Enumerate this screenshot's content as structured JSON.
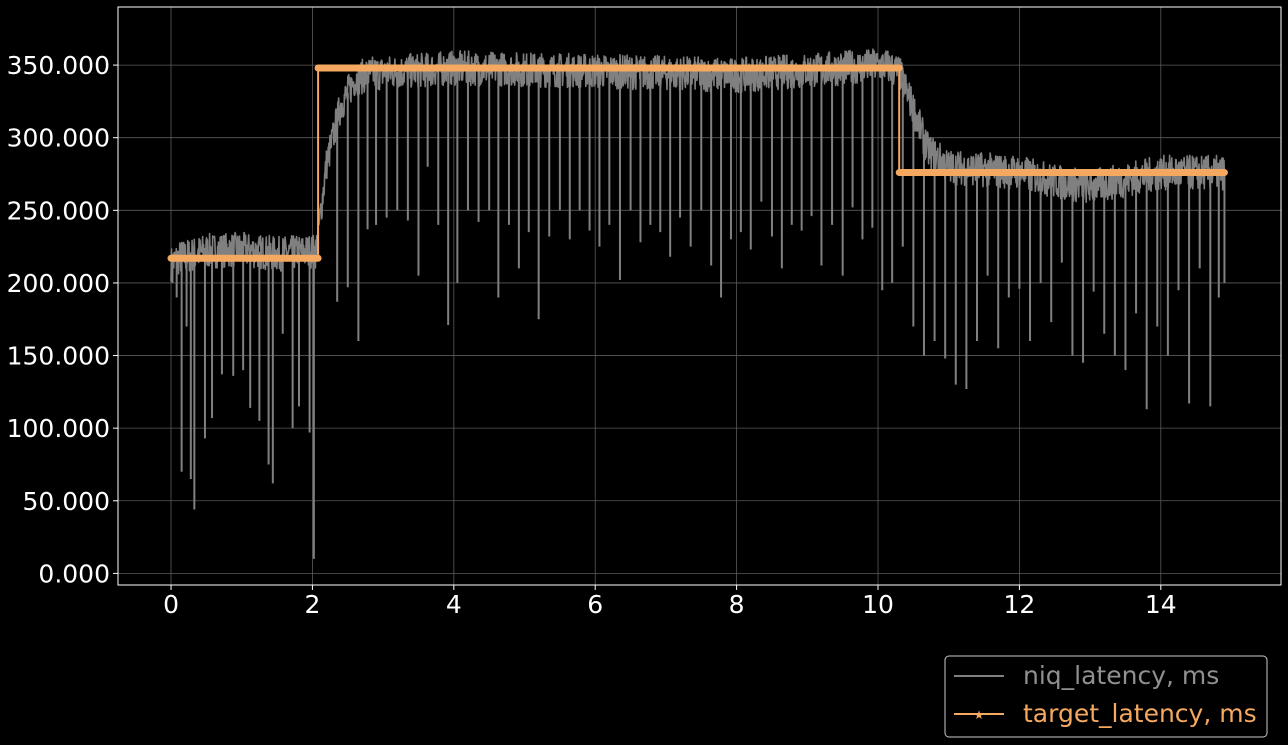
{
  "chart_data": {
    "type": "line",
    "title": "",
    "xlabel": "",
    "ylabel": "",
    "xlim": [
      -0.75,
      15.7
    ],
    "ylim": [
      -8,
      390
    ],
    "x_ticks": [
      0,
      2,
      4,
      6,
      8,
      10,
      12,
      14
    ],
    "x_tick_labels": [
      "0",
      "2",
      "4",
      "6",
      "8",
      "10",
      "12",
      "14"
    ],
    "y_ticks": [
      0,
      50,
      100,
      150,
      200,
      250,
      300,
      350
    ],
    "y_tick_labels": [
      "0.000",
      "50.000",
      "100.000",
      "150.000",
      "200.000",
      "250.000",
      "300.000",
      "350.000"
    ],
    "grid": true,
    "legend_position": "bottom-right, below plot",
    "colors": {
      "background": "#000000",
      "axes": "#ffffff",
      "grid": "#5a5a5a"
    },
    "series": [
      {
        "name": "niq_latency, ms",
        "color": "#808080",
        "style": "noisy line",
        "baseline": {
          "x": [
            0,
            0.1,
            0.5,
            1.0,
            1.5,
            2.05,
            2.2,
            2.4,
            2.6,
            2.8,
            4,
            6,
            8,
            10.1,
            10.3,
            10.5,
            10.7,
            11,
            12,
            12.5,
            13,
            13.5,
            14,
            14.9
          ],
          "y": [
            213,
            217,
            222,
            223,
            220,
            222,
            282,
            322,
            340,
            344,
            348,
            346,
            343,
            350,
            345,
            320,
            292,
            280,
            276,
            270,
            266,
            271,
            276,
            276
          ]
        },
        "dips": {
          "x": [
            0.02,
            0.08,
            0.15,
            0.22,
            0.28,
            0.33,
            0.48,
            0.58,
            0.72,
            0.88,
            1.02,
            1.12,
            1.25,
            1.38,
            1.44,
            1.58,
            1.72,
            1.81,
            1.96,
            2.02,
            2.35,
            2.5,
            2.65,
            2.78,
            2.9,
            3.05,
            3.2,
            3.35,
            3.5,
            3.63,
            3.78,
            3.92,
            4.05,
            4.2,
            4.35,
            4.5,
            4.63,
            4.78,
            4.92,
            5.06,
            5.2,
            5.35,
            5.5,
            5.64,
            5.78,
            5.92,
            6.06,
            6.2,
            6.35,
            6.5,
            6.64,
            6.78,
            6.92,
            7.06,
            7.2,
            7.35,
            7.5,
            7.64,
            7.78,
            7.92,
            8.06,
            8.2,
            8.35,
            8.5,
            8.64,
            8.78,
            8.92,
            9.06,
            9.2,
            9.35,
            9.5,
            9.64,
            9.78,
            9.92,
            10.06,
            10.2,
            10.35,
            10.5,
            10.65,
            10.8,
            10.95,
            11.1,
            11.25,
            11.4,
            11.55,
            11.7,
            11.85,
            12.0,
            12.15,
            12.3,
            12.45,
            12.6,
            12.75,
            12.9,
            13.05,
            13.2,
            13.35,
            13.5,
            13.65,
            13.8,
            13.95,
            14.1,
            14.25,
            14.4,
            14.55,
            14.7,
            14.82,
            14.9
          ],
          "y": [
            200,
            190,
            70,
            170,
            65,
            44,
            93,
            107,
            137,
            136,
            140,
            114,
            105,
            75,
            62,
            165,
            100,
            115,
            97,
            10,
            187,
            197,
            160,
            237,
            240,
            245,
            250,
            243,
            205,
            280,
            240,
            171,
            200,
            250,
            242,
            250,
            190,
            240,
            210,
            235,
            175,
            232,
            250,
            230,
            250,
            236,
            225,
            240,
            202,
            250,
            228,
            240,
            235,
            218,
            245,
            225,
            250,
            212,
            190,
            230,
            235,
            223,
            256,
            232,
            210,
            240,
            236,
            246,
            212,
            240,
            205,
            252,
            230,
            238,
            195,
            200,
            225,
            170,
            150,
            160,
            148,
            130,
            127,
            160,
            205,
            155,
            190,
            196,
            160,
            200,
            173,
            214,
            150,
            145,
            194,
            165,
            150,
            140,
            179,
            113,
            170,
            150,
            195,
            117,
            210,
            115,
            190,
            200
          ]
        }
      },
      {
        "name": "target_latency, ms",
        "color": "#f5a860",
        "marker": "star",
        "x": [
          0,
          2.08,
          2.08,
          10.3,
          10.3,
          14.9
        ],
        "y": [
          217,
          217,
          348,
          348,
          276,
          276
        ]
      }
    ]
  }
}
